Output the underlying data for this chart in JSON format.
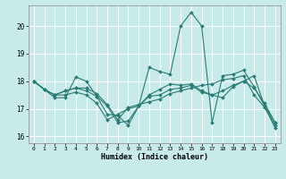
{
  "xlabel": "Humidex (Indice chaleur)",
  "bg_color": "#c8eae8",
  "line_color": "#2b7b75",
  "grid_color": "#ffffff",
  "xlim": [
    -0.5,
    23.5
  ],
  "ylim": [
    15.75,
    20.75
  ],
  "yticks": [
    16,
    17,
    18,
    19,
    20
  ],
  "xticks": [
    0,
    1,
    2,
    3,
    4,
    5,
    6,
    7,
    8,
    9,
    10,
    11,
    12,
    13,
    14,
    15,
    16,
    17,
    18,
    19,
    20,
    21,
    22,
    23
  ],
  "lines": [
    [
      18.0,
      17.7,
      17.4,
      17.4,
      18.15,
      18.0,
      17.45,
      16.8,
      16.75,
      16.4,
      17.1,
      18.5,
      18.35,
      18.25,
      20.0,
      20.5,
      20.0,
      16.5,
      18.2,
      18.25,
      18.4,
      17.8,
      17.1,
      16.5
    ],
    [
      18.0,
      17.7,
      17.5,
      17.65,
      17.75,
      17.75,
      17.55,
      17.15,
      16.6,
      17.05,
      17.15,
      17.25,
      17.35,
      17.55,
      17.65,
      17.75,
      17.85,
      17.9,
      18.05,
      18.1,
      18.2,
      17.5,
      17.05,
      16.4
    ],
    [
      18.0,
      17.7,
      17.5,
      17.65,
      17.75,
      17.65,
      17.45,
      17.1,
      16.5,
      16.55,
      17.1,
      17.5,
      17.7,
      17.9,
      17.85,
      17.9,
      17.65,
      17.5,
      17.65,
      17.85,
      18.0,
      17.75,
      17.2,
      16.5
    ],
    [
      18.0,
      17.7,
      17.5,
      17.5,
      17.6,
      17.5,
      17.2,
      16.6,
      16.8,
      17.0,
      17.1,
      17.45,
      17.5,
      17.7,
      17.75,
      17.85,
      17.6,
      17.5,
      17.4,
      17.8,
      18.0,
      18.2,
      17.1,
      16.3
    ]
  ]
}
